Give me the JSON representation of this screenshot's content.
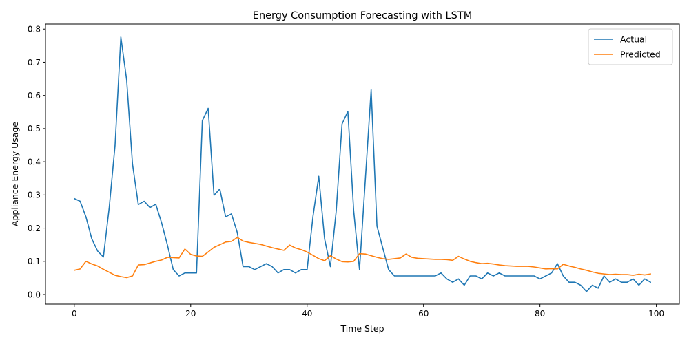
{
  "chart_data": {
    "type": "line",
    "title": "Energy Consumption Forecasting with LSTM",
    "xlabel": "Time Step",
    "ylabel": "Appliance Energy Usage",
    "xlim": [
      -4.95,
      103.95
    ],
    "ylim": [
      -0.029,
      0.815
    ],
    "xticks": [
      0,
      20,
      40,
      60,
      80,
      100
    ],
    "xtick_labels": [
      "0",
      "20",
      "40",
      "60",
      "80",
      "100"
    ],
    "yticks": [
      0.0,
      0.1,
      0.2,
      0.3,
      0.4,
      0.5,
      0.6,
      0.7,
      0.8
    ],
    "ytick_labels": [
      "0.0",
      "0.1",
      "0.2",
      "0.3",
      "0.4",
      "0.5",
      "0.6",
      "0.7",
      "0.8"
    ],
    "grid": false,
    "legend_position": "top-right",
    "x": [
      0,
      1,
      2,
      3,
      4,
      5,
      6,
      7,
      8,
      9,
      10,
      11,
      12,
      13,
      14,
      15,
      16,
      17,
      18,
      19,
      20,
      21,
      22,
      23,
      24,
      25,
      26,
      27,
      28,
      29,
      30,
      31,
      32,
      33,
      34,
      35,
      36,
      37,
      38,
      39,
      40,
      41,
      42,
      43,
      44,
      45,
      46,
      47,
      48,
      49,
      50,
      51,
      52,
      53,
      54,
      55,
      56,
      57,
      58,
      59,
      60,
      61,
      62,
      63,
      64,
      65,
      66,
      67,
      68,
      69,
      70,
      71,
      72,
      73,
      74,
      75,
      76,
      77,
      78,
      79,
      80,
      81,
      82,
      83,
      84,
      85,
      86,
      87,
      88,
      89,
      90,
      91,
      92,
      93,
      94,
      95,
      96,
      97,
      98,
      99
    ],
    "series": [
      {
        "name": "Actual",
        "color": "#1f77b4",
        "values": [
          0.289,
          0.281,
          0.234,
          0.168,
          0.131,
          0.113,
          0.262,
          0.449,
          0.776,
          0.646,
          0.393,
          0.271,
          0.281,
          0.262,
          0.272,
          0.216,
          0.149,
          0.075,
          0.056,
          0.065,
          0.065,
          0.065,
          0.524,
          0.561,
          0.299,
          0.318,
          0.234,
          0.243,
          0.187,
          0.084,
          0.084,
          0.075,
          0.084,
          0.093,
          0.084,
          0.065,
          0.075,
          0.075,
          0.065,
          0.075,
          0.075,
          0.234,
          0.356,
          0.168,
          0.084,
          0.252,
          0.514,
          0.552,
          0.252,
          0.075,
          0.346,
          0.617,
          0.206,
          0.14,
          0.075,
          0.056,
          0.056,
          0.056,
          0.056,
          0.056,
          0.056,
          0.056,
          0.056,
          0.065,
          0.047,
          0.037,
          0.047,
          0.028,
          0.056,
          0.056,
          0.047,
          0.065,
          0.056,
          0.065,
          0.056,
          0.056,
          0.056,
          0.056,
          0.056,
          0.056,
          0.047,
          0.056,
          0.065,
          0.093,
          0.056,
          0.037,
          0.037,
          0.028,
          0.009,
          0.028,
          0.019,
          0.056,
          0.037,
          0.047,
          0.037,
          0.037,
          0.047,
          0.028,
          0.047,
          0.037
        ]
      },
      {
        "name": "Predicted",
        "color": "#ff7f0e",
        "values": [
          0.073,
          0.077,
          0.1,
          0.092,
          0.086,
          0.076,
          0.067,
          0.058,
          0.054,
          0.051,
          0.056,
          0.089,
          0.09,
          0.095,
          0.1,
          0.104,
          0.112,
          0.111,
          0.11,
          0.137,
          0.121,
          0.116,
          0.115,
          0.128,
          0.142,
          0.15,
          0.158,
          0.16,
          0.172,
          0.161,
          0.157,
          0.154,
          0.151,
          0.146,
          0.141,
          0.137,
          0.133,
          0.149,
          0.14,
          0.135,
          0.128,
          0.118,
          0.108,
          0.102,
          0.117,
          0.107,
          0.099,
          0.098,
          0.1,
          0.123,
          0.122,
          0.117,
          0.112,
          0.108,
          0.106,
          0.108,
          0.11,
          0.122,
          0.112,
          0.109,
          0.108,
          0.107,
          0.106,
          0.106,
          0.105,
          0.103,
          0.115,
          0.107,
          0.1,
          0.096,
          0.093,
          0.094,
          0.092,
          0.089,
          0.087,
          0.086,
          0.085,
          0.085,
          0.085,
          0.083,
          0.08,
          0.077,
          0.078,
          0.077,
          0.091,
          0.086,
          0.082,
          0.077,
          0.073,
          0.068,
          0.064,
          0.062,
          0.06,
          0.061,
          0.06,
          0.06,
          0.058,
          0.061,
          0.059,
          0.062
        ]
      }
    ]
  }
}
